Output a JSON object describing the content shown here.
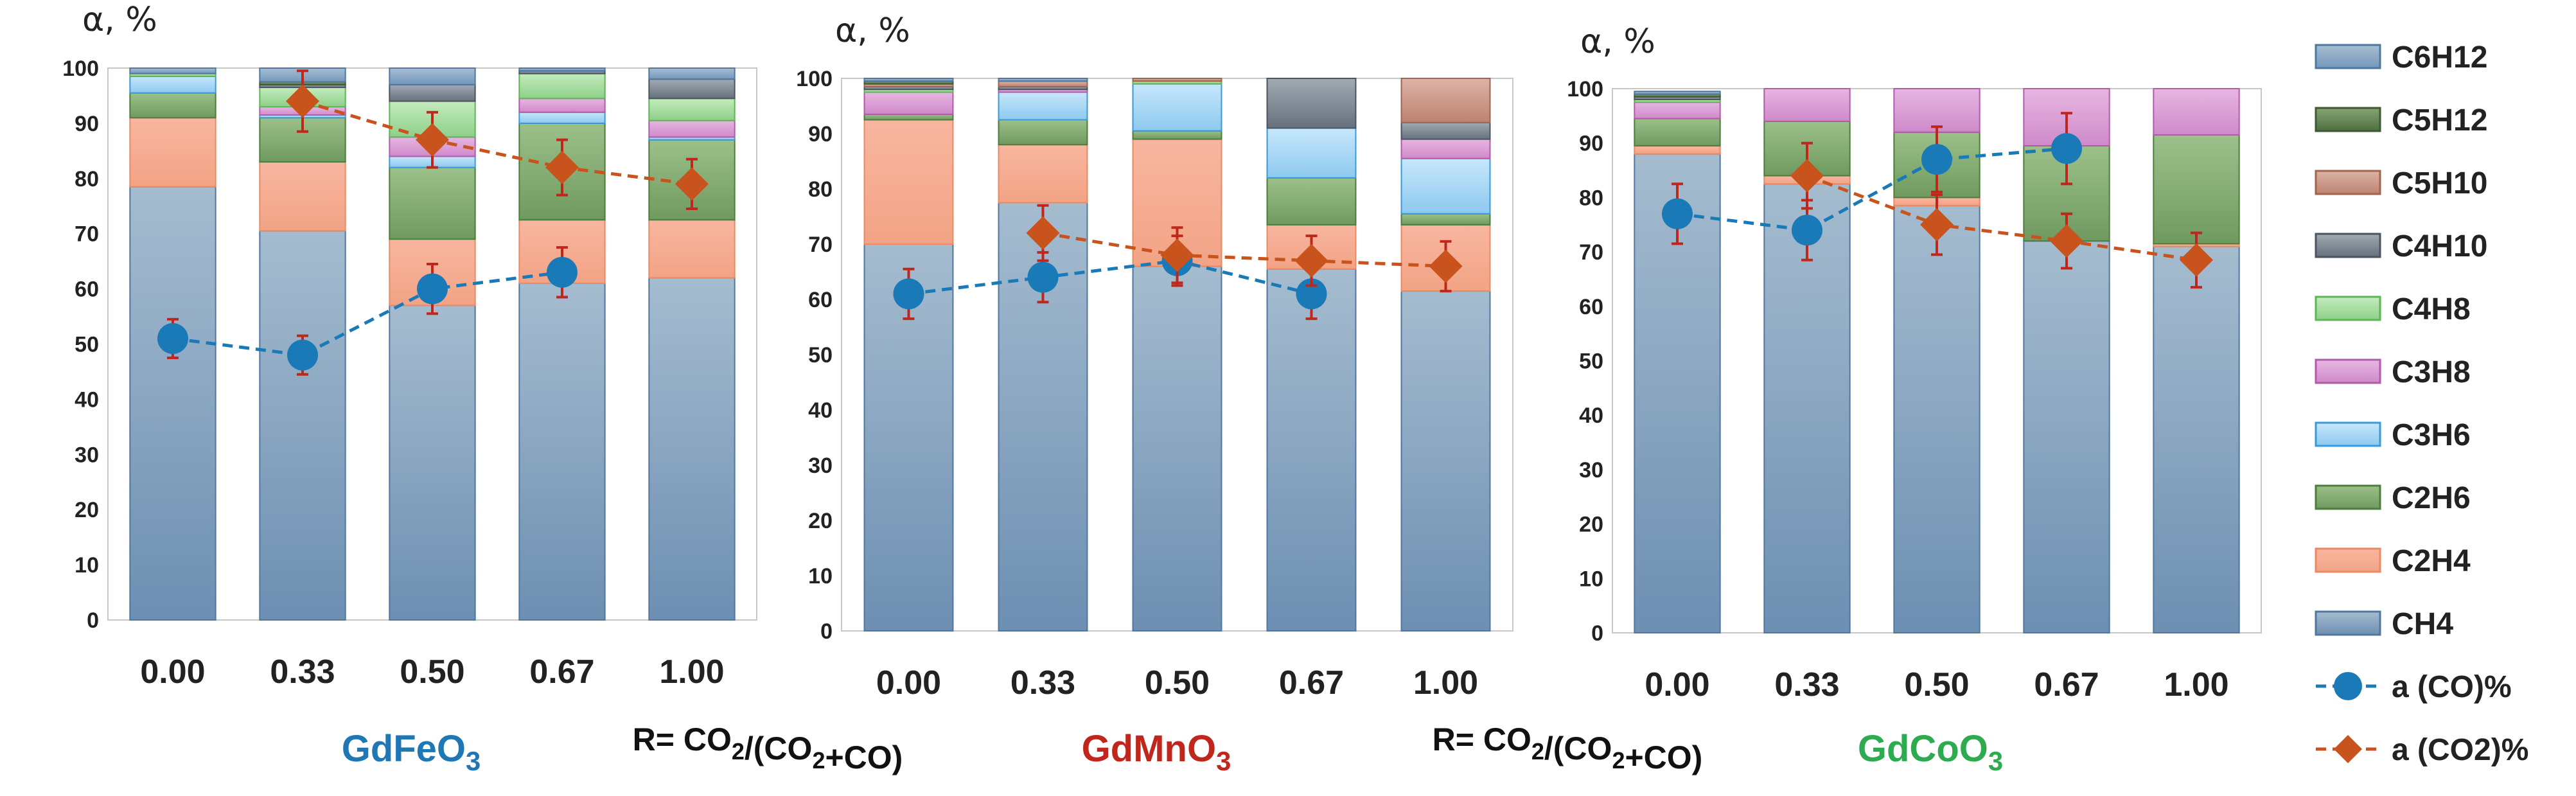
{
  "chart_data": [
    {
      "type": "bar",
      "stacked": true,
      "title": "GdFeO3",
      "title_color": "#1f77b4",
      "xlabel": "R= CO2/(CO2+CO)",
      "ylabel": "α, %",
      "ylim": [
        0,
        100
      ],
      "yticks": [
        "0",
        "10",
        "20",
        "30",
        "40",
        "50",
        "60",
        "70",
        "80",
        "90",
        "100"
      ],
      "categories": [
        "0.00",
        "0.33",
        "0.50",
        "0.67",
        "1.00"
      ],
      "series": [
        {
          "name": "CH4",
          "values": [
            78.5,
            70.5,
            57,
            61,
            62
          ]
        },
        {
          "name": "C2H4",
          "values": [
            12.5,
            12.5,
            12,
            11.5,
            10.5
          ]
        },
        {
          "name": "C2H6",
          "values": [
            4.5,
            8,
            13,
            17.5,
            14.5
          ]
        },
        {
          "name": "C3H6",
          "values": [
            3,
            0.5,
            2,
            2,
            0.5
          ]
        },
        {
          "name": "C3H8",
          "values": [
            0,
            1.5,
            3.5,
            2.5,
            3
          ]
        },
        {
          "name": "C4H8",
          "values": [
            0.5,
            3.5,
            6.5,
            4.5,
            4
          ]
        },
        {
          "name": "C4H10",
          "values": [
            0,
            0.5,
            3,
            0.5,
            3.5
          ]
        },
        {
          "name": "C5H10",
          "values": [
            0,
            0,
            0,
            0,
            0
          ]
        },
        {
          "name": "C5H12",
          "values": [
            0,
            0.5,
            0,
            0,
            0
          ]
        },
        {
          "name": "C6H12",
          "values": [
            1,
            2.5,
            3,
            0.5,
            2
          ]
        }
      ],
      "lines": [
        {
          "name": "a (CO)%",
          "values": [
            51,
            48,
            60,
            63,
            null
          ],
          "errors": [
            3.5,
            3.5,
            4.5,
            4.5,
            null
          ]
        },
        {
          "name": "a (CO2)%",
          "values": [
            null,
            94,
            87,
            82,
            79
          ],
          "errors": [
            null,
            5.5,
            5,
            5,
            4.5
          ]
        }
      ]
    },
    {
      "type": "bar",
      "stacked": true,
      "title": "GdMnO3",
      "title_color": "#c0261b",
      "xlabel": "R= CO2/(CO2+CO)",
      "ylabel": "α, %",
      "ylim": [
        0,
        100
      ],
      "yticks": [
        "0",
        "10",
        "20",
        "30",
        "40",
        "50",
        "60",
        "70",
        "80",
        "90",
        "100"
      ],
      "categories": [
        "0.00",
        "0.33",
        "0.50",
        "0.67",
        "1.00"
      ],
      "series": [
        {
          "name": "CH4",
          "values": [
            70,
            77.5,
            66,
            65.5,
            61.5
          ]
        },
        {
          "name": "C2H4",
          "values": [
            22.5,
            10.5,
            23,
            8,
            12
          ]
        },
        {
          "name": "C2H6",
          "values": [
            1,
            4.5,
            1.5,
            8.5,
            2
          ]
        },
        {
          "name": "C3H6",
          "values": [
            0,
            5,
            8.5,
            9,
            10
          ]
        },
        {
          "name": "C3H8",
          "values": [
            4,
            0.5,
            0,
            0,
            3.5
          ]
        },
        {
          "name": "C4H8",
          "values": [
            0.5,
            0,
            0.5,
            0,
            0
          ]
        },
        {
          "name": "C4H10",
          "values": [
            0.5,
            0.5,
            0,
            9,
            3
          ]
        },
        {
          "name": "C5H10",
          "values": [
            0.5,
            1,
            0.5,
            0,
            8
          ]
        },
        {
          "name": "C5H12",
          "values": [
            0.5,
            0,
            0,
            0,
            0
          ]
        },
        {
          "name": "C6H12",
          "values": [
            0.5,
            0.5,
            0,
            0,
            0
          ]
        }
      ],
      "lines": [
        {
          "name": "a (CO)%",
          "values": [
            61,
            64,
            67,
            61,
            null
          ],
          "errors": [
            4.5,
            4.5,
            4.5,
            4.5,
            null
          ]
        },
        {
          "name": "a (CO2)%",
          "values": [
            null,
            72,
            68,
            67,
            66
          ],
          "errors": [
            null,
            5,
            5,
            4.5,
            4.5
          ]
        }
      ]
    },
    {
      "type": "bar",
      "stacked": true,
      "title": "GdCoO3",
      "title_color": "#2eaa4f",
      "xlabel": "",
      "ylabel": "α, %",
      "ylim": [
        0,
        100
      ],
      "yticks": [
        "0",
        "10",
        "20",
        "30",
        "40",
        "50",
        "60",
        "70",
        "80",
        "90",
        "100"
      ],
      "categories": [
        "0.00",
        "0.33",
        "0.50",
        "0.67",
        "1.00"
      ],
      "series": [
        {
          "name": "CH4",
          "values": [
            88,
            82.5,
            78.5,
            72,
            71
          ]
        },
        {
          "name": "C2H4",
          "values": [
            1.5,
            1.5,
            1.5,
            0,
            0.5
          ]
        },
        {
          "name": "C2H6",
          "values": [
            5,
            10,
            12,
            17.5,
            20
          ]
        },
        {
          "name": "C3H6",
          "values": [
            0,
            0,
            0,
            0,
            0
          ]
        },
        {
          "name": "C3H8",
          "values": [
            3,
            6,
            8,
            10.5,
            8.5
          ]
        },
        {
          "name": "C4H8",
          "values": [
            0.5,
            0,
            0,
            0,
            0
          ]
        },
        {
          "name": "C4H10",
          "values": [
            0.5,
            0,
            0,
            0,
            0
          ]
        },
        {
          "name": "C5H10",
          "values": [
            0,
            0,
            0,
            0,
            0
          ]
        },
        {
          "name": "C5H12",
          "values": [
            0.5,
            0,
            0,
            0,
            0
          ]
        },
        {
          "name": "C6H12",
          "values": [
            0.5,
            0,
            0,
            0,
            0
          ]
        }
      ],
      "lines": [
        {
          "name": "a (CO)%",
          "values": [
            77,
            74,
            87,
            89,
            null
          ],
          "errors": [
            5.5,
            5.5,
            6,
            6.5,
            null
          ]
        },
        {
          "name": "a (CO2)%",
          "values": [
            null,
            84,
            75,
            72,
            68.5
          ],
          "errors": [
            null,
            6,
            5.5,
            5,
            5
          ]
        }
      ]
    }
  ],
  "legend": {
    "position": "right",
    "items": [
      {
        "name": "C6H12",
        "color": "#7d9ec0"
      },
      {
        "name": "C5H12",
        "color": "#5e7f4f"
      },
      {
        "name": "C5H10",
        "color": "#c99585"
      },
      {
        "name": "C4H10",
        "color": "#6f7a86"
      },
      {
        "name": "C4H8",
        "color": "#9ed69a"
      },
      {
        "name": "C3H8",
        "color": "#d89ad3"
      },
      {
        "name": "C3H6",
        "color": "#9fd3f2"
      },
      {
        "name": "C2H6",
        "color": "#7fa86c"
      },
      {
        "name": "C2H4",
        "color": "#f5a88b"
      },
      {
        "name": "CH4",
        "color": "#7d9ec0"
      },
      {
        "name": "a (CO)%",
        "color": "#1a7ab8"
      },
      {
        "name": "a (CO2)%",
        "color": "#c8531d"
      }
    ]
  }
}
